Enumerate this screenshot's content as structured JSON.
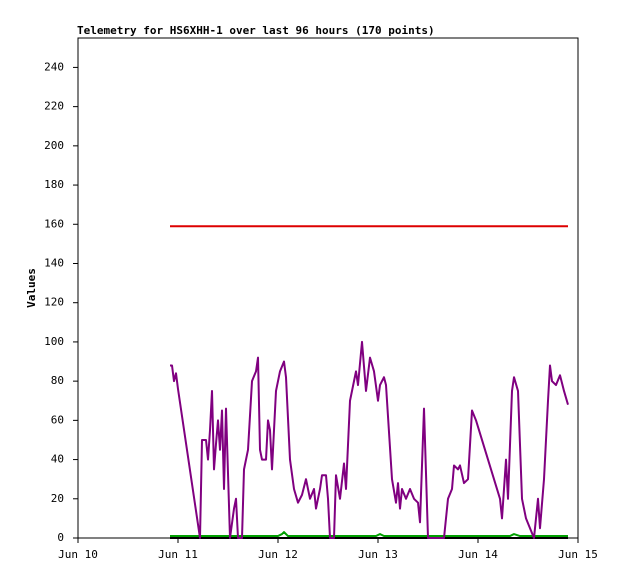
{
  "chart_data": {
    "type": "line",
    "title": "Telemetry for HS6XHH-1 over last 96 hours (170 points)",
    "ylabel": "Values",
    "xlim": [
      10,
      15
    ],
    "xticks": [
      {
        "value": 10,
        "label": "Jun 10"
      },
      {
        "value": 11,
        "label": "Jun 11"
      },
      {
        "value": 12,
        "label": "Jun 12"
      },
      {
        "value": 13,
        "label": "Jun 13"
      },
      {
        "value": 14,
        "label": "Jun 14"
      },
      {
        "value": 15,
        "label": "Jun 15"
      }
    ],
    "ylim": [
      0,
      255
    ],
    "yticks": [
      0,
      20,
      40,
      60,
      80,
      100,
      120,
      140,
      160,
      180,
      200,
      220,
      240
    ],
    "grid": false,
    "series": [
      {
        "color": "#000000",
        "x": [
          10.92,
          14.9
        ],
        "values": [
          0,
          0
        ]
      },
      {
        "color": "#00a000",
        "x": [
          10.92,
          11.1,
          11.5,
          11.8,
          12.0,
          12.04,
          12.06,
          12.1,
          12.5,
          12.98,
          13.02,
          13.06,
          13.6,
          14.0,
          14.32,
          14.36,
          14.42,
          14.9
        ],
        "values": [
          1,
          1,
          1,
          1,
          1,
          2,
          3,
          1,
          1,
          1,
          2,
          1,
          1,
          1,
          1,
          2,
          1,
          1
        ]
      },
      {
        "color": "#dd0000",
        "x": [
          10.92,
          14.9
        ],
        "values": [
          159,
          159
        ]
      },
      {
        "color": "#800080",
        "x": [
          10.92,
          10.94,
          10.96,
          10.98,
          11.0,
          11.22,
          11.24,
          11.28,
          11.3,
          11.32,
          11.34,
          11.36,
          11.38,
          11.4,
          11.42,
          11.44,
          11.46,
          11.48,
          11.52,
          11.56,
          11.58,
          11.6,
          11.64,
          11.66,
          11.7,
          11.74,
          11.78,
          11.8,
          11.82,
          11.84,
          11.88,
          11.9,
          11.92,
          11.94,
          11.98,
          12.02,
          12.06,
          12.08,
          12.12,
          12.16,
          12.2,
          12.24,
          12.28,
          12.32,
          12.36,
          12.38,
          12.42,
          12.44,
          12.48,
          12.5,
          12.52,
          12.56,
          12.58,
          12.62,
          12.66,
          12.68,
          12.72,
          12.76,
          12.78,
          12.8,
          12.84,
          12.88,
          12.92,
          12.96,
          13.0,
          13.02,
          13.06,
          13.08,
          13.14,
          13.18,
          13.2,
          13.22,
          13.24,
          13.28,
          13.32,
          13.36,
          13.4,
          13.42,
          13.46,
          13.5,
          13.66,
          13.7,
          13.74,
          13.76,
          13.8,
          13.82,
          13.86,
          13.9,
          13.94,
          13.98,
          14.22,
          14.24,
          14.28,
          14.3,
          14.34,
          14.36,
          14.4,
          14.44,
          14.48,
          14.52,
          14.56,
          14.6,
          14.62,
          14.66,
          14.7,
          14.72,
          14.74,
          14.78,
          14.82,
          14.86,
          14.9
        ],
        "values": [
          88,
          88,
          80,
          84,
          76,
          0,
          50,
          50,
          40,
          55,
          75,
          35,
          48,
          60,
          45,
          65,
          25,
          66,
          0,
          15,
          20,
          0,
          0,
          35,
          45,
          80,
          85,
          92,
          45,
          40,
          40,
          60,
          55,
          35,
          75,
          85,
          90,
          82,
          40,
          25,
          18,
          22,
          30,
          20,
          25,
          15,
          25,
          32,
          32,
          20,
          0,
          0,
          32,
          20,
          38,
          25,
          70,
          80,
          85,
          78,
          100,
          75,
          92,
          85,
          70,
          78,
          82,
          78,
          30,
          18,
          28,
          15,
          25,
          20,
          25,
          20,
          18,
          8,
          66,
          0,
          0,
          20,
          25,
          37,
          35,
          37,
          28,
          30,
          65,
          60,
          20,
          10,
          40,
          20,
          75,
          82,
          75,
          20,
          10,
          5,
          0,
          20,
          5,
          30,
          70,
          88,
          80,
          78,
          83,
          75,
          68
        ]
      }
    ]
  }
}
